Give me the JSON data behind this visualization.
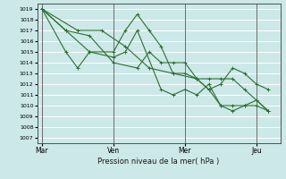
{
  "xlabel": "Pression niveau de la mer( hPa )",
  "bg_color": "#cce8e8",
  "grid_color": "#ffffff",
  "line_color": "#2d6e2d",
  "ylim": [
    1006.5,
    1019.5
  ],
  "yticks": [
    1007,
    1008,
    1009,
    1010,
    1011,
    1012,
    1013,
    1014,
    1015,
    1016,
    1017,
    1018,
    1019
  ],
  "day_labels": [
    "Mar",
    "Ven",
    "Mer",
    "Jeu"
  ],
  "day_positions": [
    0.0,
    0.3,
    0.6,
    0.9
  ],
  "xlim": [
    -0.02,
    1.0
  ],
  "vline_color": "#555555",
  "series": [
    [
      [
        0.0,
        1019.0
      ],
      [
        0.1,
        1017.0
      ],
      [
        0.2,
        1015.0
      ],
      [
        0.3,
        1015.0
      ],
      [
        0.35,
        1017.0
      ],
      [
        0.4,
        1018.5
      ],
      [
        0.45,
        1017.0
      ],
      [
        0.5,
        1015.5
      ],
      [
        0.55,
        1013.0
      ],
      [
        0.6,
        1013.0
      ],
      [
        0.65,
        1012.5
      ],
      [
        0.7,
        1011.5
      ],
      [
        0.75,
        1012.0
      ],
      [
        0.8,
        1013.5
      ],
      [
        0.85,
        1013.0
      ],
      [
        0.9,
        1012.0
      ],
      [
        0.95,
        1011.5
      ]
    ],
    [
      [
        0.0,
        1019.0
      ],
      [
        0.1,
        1015.0
      ],
      [
        0.15,
        1013.5
      ],
      [
        0.2,
        1015.0
      ],
      [
        0.3,
        1014.5
      ],
      [
        0.35,
        1015.0
      ],
      [
        0.4,
        1017.0
      ],
      [
        0.5,
        1011.5
      ],
      [
        0.55,
        1011.0
      ],
      [
        0.6,
        1011.5
      ],
      [
        0.65,
        1011.0
      ],
      [
        0.7,
        1012.0
      ],
      [
        0.75,
        1010.0
      ],
      [
        0.8,
        1009.5
      ],
      [
        0.85,
        1010.0
      ],
      [
        0.9,
        1010.0
      ],
      [
        0.95,
        1009.5
      ]
    ],
    [
      [
        0.0,
        1019.0
      ],
      [
        0.15,
        1017.0
      ],
      [
        0.25,
        1017.0
      ],
      [
        0.35,
        1015.5
      ],
      [
        0.45,
        1013.5
      ],
      [
        0.55,
        1013.0
      ],
      [
        0.65,
        1012.5
      ],
      [
        0.7,
        1011.5
      ],
      [
        0.75,
        1010.0
      ],
      [
        0.8,
        1010.0
      ],
      [
        0.85,
        1010.0
      ],
      [
        0.9,
        1010.5
      ],
      [
        0.95,
        1009.5
      ]
    ],
    [
      [
        0.0,
        1019.0
      ],
      [
        0.1,
        1017.0
      ],
      [
        0.2,
        1016.5
      ],
      [
        0.3,
        1014.0
      ],
      [
        0.4,
        1013.5
      ],
      [
        0.45,
        1015.0
      ],
      [
        0.5,
        1014.0
      ],
      [
        0.55,
        1014.0
      ],
      [
        0.6,
        1014.0
      ],
      [
        0.65,
        1012.5
      ],
      [
        0.7,
        1012.5
      ],
      [
        0.75,
        1012.5
      ],
      [
        0.8,
        1012.5
      ],
      [
        0.85,
        1011.5
      ],
      [
        0.9,
        1010.5
      ],
      [
        0.95,
        1009.5
      ]
    ]
  ]
}
